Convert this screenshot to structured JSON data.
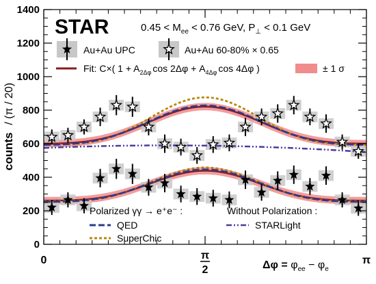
{
  "chart_data": {
    "type": "scatter",
    "experiment": "STAR",
    "selection": {
      "mass_prefix": "0.45 < M",
      "mass_sub": "ee",
      "mass_suffix": " < 0.76 GeV, P",
      "pt_sub": "⊥",
      "pt_suffix": " < 0.1 GeV"
    },
    "ylabel_main": "counts",
    "ylabel_unit": "/ (π / 20)",
    "xlabel": "Δφ = φee − φe",
    "xlabel_parts": {
      "lhs": "Δφ",
      "eq": " = ",
      "t1": "φ",
      "t1_sub": "ee",
      "minus": " − ",
      "t2": "φ",
      "t2_sub": "e"
    },
    "xlim": [
      0,
      3.1416
    ],
    "ylim": [
      0,
      1400
    ],
    "x_ticks": [
      {
        "value": 0,
        "label": "0"
      },
      {
        "value": 1.5708,
        "label_num": "π",
        "label_den": "2"
      },
      {
        "value": 3.1416,
        "label": "π"
      }
    ],
    "y_ticks": [
      0,
      200,
      400,
      600,
      800,
      1000,
      1200,
      1400
    ],
    "fit_label": {
      "prefix": "Fit: C×( 1 + A",
      "sub1": "2Δφ",
      "mid": "cos 2Δφ + A",
      "sub2": "4Δφ",
      "suffix": "cos 4Δφ )"
    },
    "band_label": "± 1 σ",
    "legend_group1": "Polarized γγ → e⁺e⁻ :",
    "legend_group2": "Without Polarization :",
    "series": [
      {
        "name": "Au+Au UPC",
        "x": [
          0.0785,
          0.2356,
          0.3927,
          0.5498,
          0.7069,
          0.8639,
          1.021,
          1.1781,
          1.3352,
          1.4923,
          1.6493,
          1.8064,
          1.9635,
          2.1206,
          2.2777,
          2.4347,
          2.5918,
          2.7489,
          2.906,
          3.0631
        ],
        "y": [
          220,
          265,
          230,
          395,
          450,
          420,
          340,
          365,
          300,
          285,
          275,
          265,
          385,
          310,
          380,
          415,
          345,
          410,
          265,
          215
        ],
        "err": [
          45,
          45,
          45,
          55,
          60,
          60,
          50,
          55,
          50,
          50,
          50,
          50,
          55,
          50,
          55,
          55,
          50,
          55,
          45,
          45
        ]
      },
      {
        "name": "Au+Au 60-80% × 0.65",
        "x": [
          0.0785,
          0.2356,
          0.3927,
          0.5498,
          0.7069,
          0.8639,
          1.021,
          1.1781,
          1.3352,
          1.4923,
          1.6493,
          1.8064,
          1.9635,
          2.1206,
          2.2777,
          2.4347,
          2.5918,
          2.7489,
          2.906,
          3.0631
        ],
        "y": [
          640,
          650,
          700,
          760,
          830,
          820,
          700,
          600,
          580,
          530,
          595,
          605,
          700,
          760,
          780,
          830,
          760,
          720,
          610,
          555
        ],
        "err": [
          45,
          45,
          45,
          55,
          60,
          60,
          50,
          55,
          50,
          50,
          50,
          50,
          55,
          50,
          55,
          55,
          50,
          55,
          45,
          45
        ]
      }
    ],
    "curves": {
      "upc": {
        "C": 330,
        "A2": -0.27,
        "A4": 0.06
      },
      "peripheral": {
        "C": 690,
        "A2": -0.16,
        "A4": 0.03
      },
      "sigma_band": 22,
      "starlight": {
        "C": 590,
        "A2": 0.0,
        "slope": -0.03
      }
    },
    "curve_names": {
      "fit": "Fit",
      "band": "± 1 σ",
      "qed": "QED",
      "superchic": "SuperChic",
      "starlight": "STARLight"
    },
    "colors": {
      "fit": "#8b1a1a",
      "band": "#f08c8c",
      "qed": "#2e3b8c",
      "superchic": "#b8860b",
      "starlight": "#4b3c9c",
      "syst_box": "#c8c8c8",
      "marker": "#000000"
    },
    "marker": "star"
  }
}
